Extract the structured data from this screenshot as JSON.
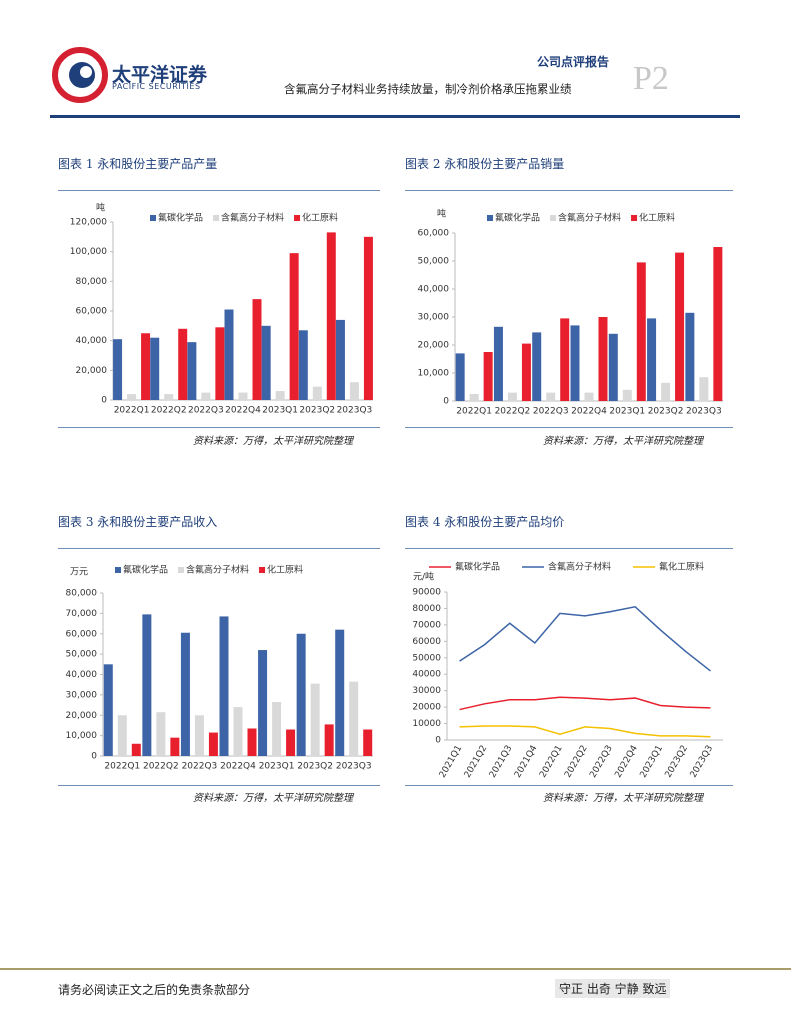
{
  "header": {
    "logo": "太平洋证券",
    "logo_en": "PACIFIC SECURITIES",
    "report_type": "公司点评报告",
    "subtitle": "含氟高分子材料业务持续放量，制冷剂价格承压拖累业绩",
    "page": "P2"
  },
  "chart_data": [
    {
      "type": "bar",
      "title": "图表 1 永和股份主要产品产量",
      "source": "资料来源：万得，太平洋研究院整理",
      "y_label": "吨",
      "categories": [
        "2022Q1",
        "2022Q2",
        "2022Q3",
        "2022Q4",
        "2023Q1",
        "2023Q2",
        "2023Q3"
      ],
      "series": [
        {
          "name": "氟碳化学品",
          "color": "#3c64a6",
          "values": [
            41000,
            42000,
            39000,
            61000,
            50000,
            47000,
            54000
          ]
        },
        {
          "name": "含氟高分子材料",
          "color": "#d9d9d9",
          "values": [
            4000,
            4000,
            5000,
            5000,
            6000,
            9000,
            12000
          ]
        },
        {
          "name": "化工原料",
          "color": "#e8202e",
          "values": [
            45000,
            48000,
            49000,
            68000,
            99000,
            113000,
            110000
          ]
        }
      ],
      "ylim": [
        0,
        120000
      ],
      "yticks": [
        0,
        {
          "value": 20000,
          "label": "20,000"
        },
        {
          "value": 40000,
          "label": "40,000"
        },
        {
          "value": 60000,
          "label": "60,000"
        },
        {
          "value": 80000,
          "label": "80,000"
        },
        {
          "value": 100000,
          "label": "100,000"
        },
        {
          "value": 120000,
          "label": "120,000"
        }
      ]
    },
    {
      "type": "bar",
      "title": "图表 2 永和股份主要产品销量",
      "source": "资料来源：万得，太平洋研究院整理",
      "y_label": "吨",
      "categories": [
        "2022Q1",
        "2022Q2",
        "2022Q3",
        "2022Q4",
        "2023Q1",
        "2023Q2",
        "2023Q3"
      ],
      "series": [
        {
          "name": "氟碳化学品",
          "color": "#3c64a6",
          "values": [
            17000,
            26500,
            24500,
            27000,
            24000,
            29500,
            31500
          ]
        },
        {
          "name": "含氟高分子材料",
          "color": "#d9d9d9",
          "values": [
            2500,
            3000,
            3000,
            3000,
            4000,
            6500,
            8500
          ]
        },
        {
          "name": "化工原料",
          "color": "#e8202e",
          "values": [
            17500,
            20500,
            29500,
            30000,
            49500,
            53000,
            55000
          ]
        }
      ],
      "ylim": [
        0,
        60000
      ],
      "yticks": [
        0,
        {
          "value": 10000,
          "label": "10,000"
        },
        {
          "value": 20000,
          "label": "20,000"
        },
        {
          "value": 30000,
          "label": "30,000"
        },
        {
          "value": 40000,
          "label": "40,000"
        },
        {
          "value": 50000,
          "label": "50,000"
        },
        {
          "value": 60000,
          "label": "60,000"
        }
      ]
    },
    {
      "type": "bar",
      "title": "图表 3 永和股份主要产品收入",
      "source": "资料来源：万得，太平洋研究院整理",
      "y_label": "万元",
      "categories": [
        "2022Q1",
        "2022Q2",
        "2022Q3",
        "2022Q4",
        "2023Q1",
        "2023Q2",
        "2023Q3"
      ],
      "series": [
        {
          "name": "氟碳化学品",
          "color": "#3c64a6",
          "values": [
            45000,
            69500,
            60500,
            68500,
            52000,
            60000,
            62000
          ]
        },
        {
          "name": "含氟高分子材料",
          "color": "#d9d9d9",
          "values": [
            20000,
            21500,
            20000,
            24000,
            26500,
            35500,
            36500
          ]
        },
        {
          "name": "化工原料",
          "color": "#e8202e",
          "values": [
            6000,
            9000,
            11500,
            13500,
            13000,
            15500,
            13000
          ]
        }
      ],
      "ylim": [
        0,
        80000
      ],
      "yticks": [
        0,
        {
          "value": 10000,
          "label": "10,000"
        },
        {
          "value": 20000,
          "label": "20,000"
        },
        {
          "value": 30000,
          "label": "30,000"
        },
        {
          "value": 40000,
          "label": "40,000"
        },
        {
          "value": 50000,
          "label": "50,000"
        },
        {
          "value": 60000,
          "label": "60,000"
        },
        {
          "value": 70000,
          "label": "70,000"
        },
        {
          "value": 80000,
          "label": "80,000"
        }
      ]
    },
    {
      "type": "line",
      "title": "图表 4 永和股份主要产品均价",
      "source": "资料来源：万得，太平洋研究院整理",
      "y_label": "元/吨",
      "categories": [
        "2021Q1",
        "2021Q2",
        "2021Q3",
        "2021Q4",
        "2022Q1",
        "2022Q2",
        "2022Q3",
        "2022Q4",
        "2023Q1",
        "2023Q2",
        "2023Q3"
      ],
      "series": [
        {
          "name": "氟碳化学品",
          "color": "#e8202e",
          "values": [
            18500,
            22000,
            24500,
            24500,
            26000,
            25500,
            24500,
            25500,
            21000,
            20000,
            19500
          ]
        },
        {
          "name": "含氟高分子材料",
          "color": "#3c64a6",
          "values": [
            48000,
            58000,
            71000,
            59000,
            77000,
            75500,
            78000,
            81000,
            67000,
            54000,
            42000
          ]
        },
        {
          "name": "氟化工原料",
          "color": "#f5c000",
          "values": [
            8000,
            8500,
            8500,
            8000,
            3500,
            8000,
            7000,
            4000,
            2500,
            2500,
            2000
          ]
        }
      ],
      "ylim": [
        0,
        90000
      ],
      "yticks": [
        0,
        10000,
        20000,
        30000,
        40000,
        50000,
        60000,
        70000,
        80000,
        90000
      ]
    }
  ],
  "footer": {
    "note": "请务必阅读正文之后的免责条款部分",
    "motto": "守正 出奇 宁静 致远"
  }
}
